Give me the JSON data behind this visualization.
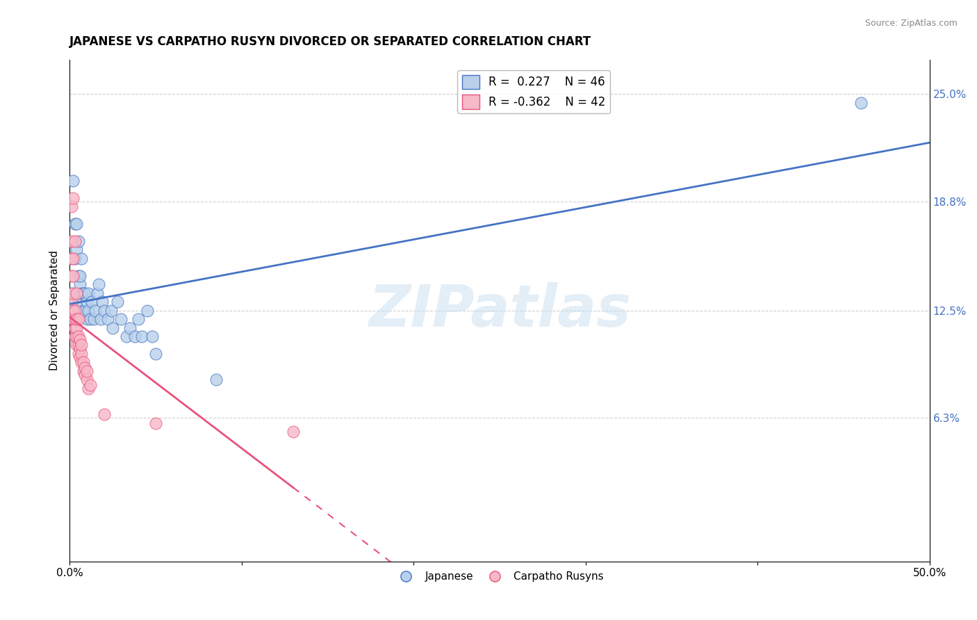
{
  "title": "JAPANESE VS CARPATHO RUSYN DIVORCED OR SEPARATED CORRELATION CHART",
  "source": "Source: ZipAtlas.com",
  "ylabel": "Divorced or Separated",
  "legend_label_1": "Japanese",
  "legend_label_2": "Carpatho Rusyns",
  "r1": 0.227,
  "n1": 46,
  "r2": -0.362,
  "n2": 42,
  "xlim": [
    0.0,
    0.5
  ],
  "ylim": [
    -0.02,
    0.27
  ],
  "right_yticks": [
    0.063,
    0.125,
    0.188,
    0.25
  ],
  "right_yticklabels": [
    "6.3%",
    "12.5%",
    "18.8%",
    "25.0%"
  ],
  "xticklabels": [
    "0.0%",
    "",
    "",
    "",
    "",
    "50.0%"
  ],
  "xticks": [
    0.0,
    0.1,
    0.2,
    0.3,
    0.4,
    0.5
  ],
  "color_blue": "#b8d0ea",
  "color_pink": "#f7b8c8",
  "line_blue": "#4472c4",
  "line_pink": "#e8527a",
  "watermark": "ZIPatlas",
  "japanese_x": [
    0.001,
    0.002,
    0.003,
    0.003,
    0.004,
    0.004,
    0.005,
    0.005,
    0.005,
    0.006,
    0.006,
    0.007,
    0.007,
    0.007,
    0.008,
    0.008,
    0.009,
    0.009,
    0.01,
    0.01,
    0.011,
    0.011,
    0.012,
    0.013,
    0.014,
    0.015,
    0.016,
    0.017,
    0.018,
    0.019,
    0.02,
    0.022,
    0.024,
    0.025,
    0.028,
    0.03,
    0.033,
    0.035,
    0.038,
    0.04,
    0.042,
    0.045,
    0.048,
    0.05,
    0.085,
    0.46
  ],
  "japanese_y": [
    0.135,
    0.2,
    0.175,
    0.155,
    0.16,
    0.175,
    0.13,
    0.145,
    0.165,
    0.14,
    0.145,
    0.13,
    0.135,
    0.155,
    0.125,
    0.135,
    0.125,
    0.135,
    0.12,
    0.13,
    0.135,
    0.125,
    0.12,
    0.13,
    0.12,
    0.125,
    0.135,
    0.14,
    0.12,
    0.13,
    0.125,
    0.12,
    0.125,
    0.115,
    0.13,
    0.12,
    0.11,
    0.115,
    0.11,
    0.12,
    0.11,
    0.125,
    0.11,
    0.1,
    0.085,
    0.245
  ],
  "rusyn_x": [
    0.001,
    0.001,
    0.001,
    0.001,
    0.001,
    0.002,
    0.002,
    0.002,
    0.002,
    0.002,
    0.002,
    0.003,
    0.003,
    0.003,
    0.003,
    0.003,
    0.004,
    0.004,
    0.004,
    0.004,
    0.004,
    0.005,
    0.005,
    0.005,
    0.005,
    0.006,
    0.006,
    0.006,
    0.007,
    0.007,
    0.007,
    0.008,
    0.008,
    0.009,
    0.009,
    0.01,
    0.01,
    0.011,
    0.012,
    0.02,
    0.05,
    0.13
  ],
  "rusyn_y": [
    0.13,
    0.145,
    0.155,
    0.165,
    0.185,
    0.12,
    0.125,
    0.135,
    0.145,
    0.155,
    0.19,
    0.11,
    0.115,
    0.12,
    0.125,
    0.165,
    0.105,
    0.11,
    0.115,
    0.12,
    0.135,
    0.1,
    0.105,
    0.11,
    0.12,
    0.098,
    0.103,
    0.108,
    0.095,
    0.1,
    0.105,
    0.09,
    0.095,
    0.088,
    0.092,
    0.085,
    0.09,
    0.08,
    0.082,
    0.065,
    0.06,
    0.055
  ],
  "rusyn_line_start_x": 0.001,
  "rusyn_line_end_solid": 0.13,
  "rusyn_line_end_dashed": 0.5,
  "background_color": "#ffffff",
  "grid_color": "#d0d0d0"
}
